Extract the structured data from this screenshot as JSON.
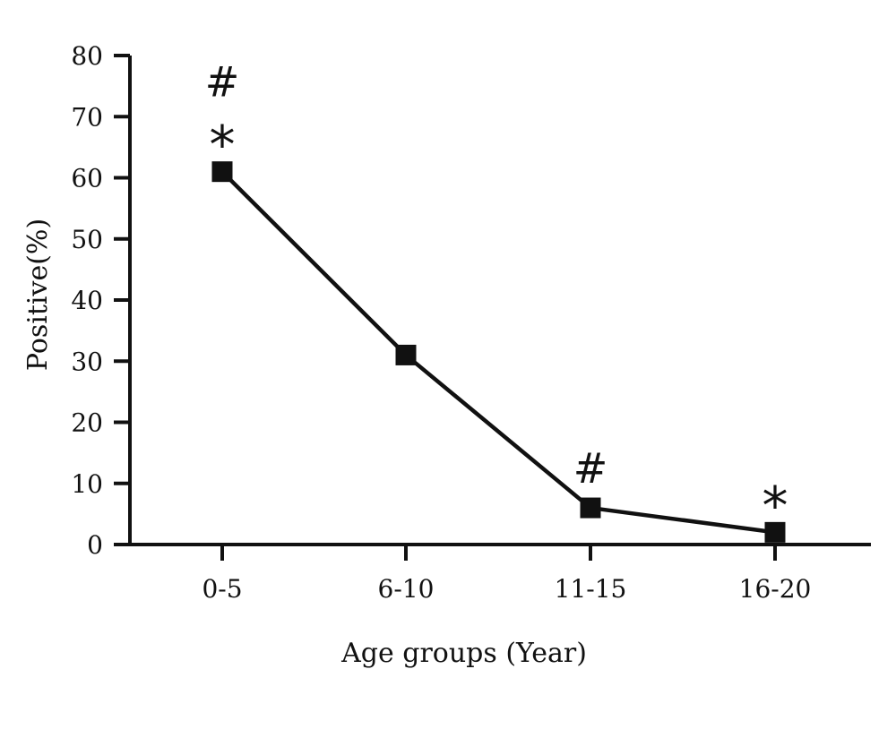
{
  "chart_data": {
    "type": "line",
    "categories": [
      "0-5",
      "6-10",
      "11-15",
      "16-20"
    ],
    "series": [
      {
        "values": [
          61,
          31,
          6,
          2
        ]
      }
    ],
    "title": "",
    "xlabel": "Age groups (Year)",
    "ylabel": "Positive(%)",
    "ylim": [
      0,
      80
    ],
    "yticks": [
      0,
      10,
      20,
      30,
      40,
      50,
      60,
      70,
      80
    ],
    "grid": false,
    "marker": "square",
    "annotations": [
      {
        "category": "0-5",
        "symbols": [
          "#",
          "*"
        ]
      },
      {
        "category": "11-15",
        "symbols": [
          "#"
        ]
      },
      {
        "category": "16-20",
        "symbols": [
          "*"
        ]
      }
    ],
    "colors": {
      "line": "#111111",
      "marker": "#111111"
    }
  }
}
